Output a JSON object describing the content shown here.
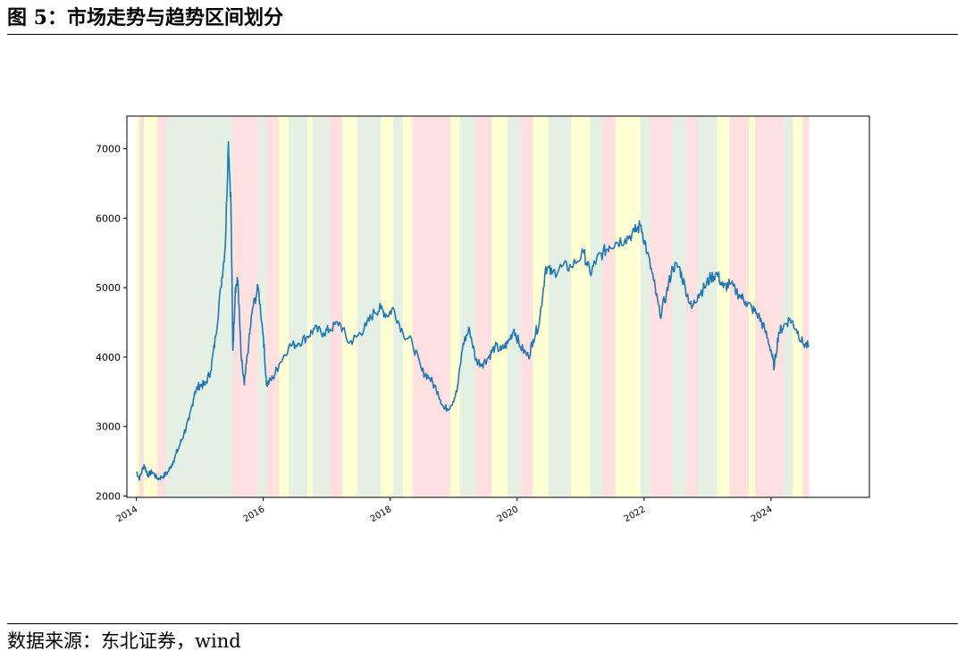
{
  "title": "图 5：市场走势与趋势区间划分",
  "source": "数据来源：东北证券，wind",
  "chart_data": {
    "type": "line",
    "title": "",
    "xlabel": "",
    "ylabel": "",
    "xlim": [
      2013.85,
      2025.55
    ],
    "ylim": [
      1980,
      7470
    ],
    "x_ticks": [
      2014,
      2016,
      2018,
      2020,
      2022,
      2024
    ],
    "y_ticks": [
      2000,
      3000,
      4000,
      5000,
      6000,
      7000
    ],
    "grid": false,
    "legend": "none",
    "regime_colors": {
      "up": "#e3f0e3",
      "range": "#ffffd4",
      "down": "#ffe0e0"
    },
    "regimes": [
      {
        "start": 2014.0,
        "end": 2014.05,
        "state": "range"
      },
      {
        "start": 2014.05,
        "end": 2014.12,
        "state": "down"
      },
      {
        "start": 2014.12,
        "end": 2014.33,
        "state": "range"
      },
      {
        "start": 2014.33,
        "end": 2014.48,
        "state": "down"
      },
      {
        "start": 2014.48,
        "end": 2015.52,
        "state": "up"
      },
      {
        "start": 2015.52,
        "end": 2015.92,
        "state": "down"
      },
      {
        "start": 2015.92,
        "end": 2016.05,
        "state": "up"
      },
      {
        "start": 2016.05,
        "end": 2016.25,
        "state": "down"
      },
      {
        "start": 2016.25,
        "end": 2016.4,
        "state": "range"
      },
      {
        "start": 2016.4,
        "end": 2016.7,
        "state": "up"
      },
      {
        "start": 2016.7,
        "end": 2016.78,
        "state": "range"
      },
      {
        "start": 2016.78,
        "end": 2017.05,
        "state": "up"
      },
      {
        "start": 2017.05,
        "end": 2017.25,
        "state": "down"
      },
      {
        "start": 2017.25,
        "end": 2017.48,
        "state": "range"
      },
      {
        "start": 2017.48,
        "end": 2017.85,
        "state": "up"
      },
      {
        "start": 2017.85,
        "end": 2018.05,
        "state": "range"
      },
      {
        "start": 2018.05,
        "end": 2018.2,
        "state": "up"
      },
      {
        "start": 2018.2,
        "end": 2018.35,
        "state": "range"
      },
      {
        "start": 2018.35,
        "end": 2018.95,
        "state": "down"
      },
      {
        "start": 2018.95,
        "end": 2019.1,
        "state": "range"
      },
      {
        "start": 2019.1,
        "end": 2019.35,
        "state": "up"
      },
      {
        "start": 2019.35,
        "end": 2019.6,
        "state": "down"
      },
      {
        "start": 2019.6,
        "end": 2019.85,
        "state": "range"
      },
      {
        "start": 2019.85,
        "end": 2020.05,
        "state": "up"
      },
      {
        "start": 2020.05,
        "end": 2020.25,
        "state": "down"
      },
      {
        "start": 2020.25,
        "end": 2020.5,
        "state": "range"
      },
      {
        "start": 2020.5,
        "end": 2020.85,
        "state": "up"
      },
      {
        "start": 2020.85,
        "end": 2021.15,
        "state": "range"
      },
      {
        "start": 2021.15,
        "end": 2021.35,
        "state": "up"
      },
      {
        "start": 2021.35,
        "end": 2021.55,
        "state": "down"
      },
      {
        "start": 2021.55,
        "end": 2021.95,
        "state": "range"
      },
      {
        "start": 2021.95,
        "end": 2022.1,
        "state": "up"
      },
      {
        "start": 2022.1,
        "end": 2022.45,
        "state": "down"
      },
      {
        "start": 2022.45,
        "end": 2022.65,
        "state": "up"
      },
      {
        "start": 2022.65,
        "end": 2022.85,
        "state": "down"
      },
      {
        "start": 2022.85,
        "end": 2023.15,
        "state": "up"
      },
      {
        "start": 2023.15,
        "end": 2023.35,
        "state": "range"
      },
      {
        "start": 2023.35,
        "end": 2023.65,
        "state": "down"
      },
      {
        "start": 2023.65,
        "end": 2023.75,
        "state": "range"
      },
      {
        "start": 2023.75,
        "end": 2024.2,
        "state": "down"
      },
      {
        "start": 2024.2,
        "end": 2024.35,
        "state": "up"
      },
      {
        "start": 2024.35,
        "end": 2024.5,
        "state": "range"
      },
      {
        "start": 2024.5,
        "end": 2024.6,
        "state": "down"
      }
    ],
    "series": [
      {
        "color": "#1f77b4",
        "points": [
          [
            2014.0,
            2350
          ],
          [
            2014.05,
            2250
          ],
          [
            2014.12,
            2450
          ],
          [
            2014.18,
            2300
          ],
          [
            2014.25,
            2350
          ],
          [
            2014.33,
            2250
          ],
          [
            2014.42,
            2280
          ],
          [
            2014.5,
            2350
          ],
          [
            2014.58,
            2500
          ],
          [
            2014.67,
            2700
          ],
          [
            2014.75,
            2900
          ],
          [
            2014.83,
            3100
          ],
          [
            2014.92,
            3500
          ],
          [
            2015.0,
            3600
          ],
          [
            2015.08,
            3600
          ],
          [
            2015.17,
            3800
          ],
          [
            2015.25,
            4300
          ],
          [
            2015.33,
            5000
          ],
          [
            2015.4,
            5600
          ],
          [
            2015.45,
            7100
          ],
          [
            2015.49,
            6200
          ],
          [
            2015.52,
            4100
          ],
          [
            2015.56,
            5000
          ],
          [
            2015.6,
            5100
          ],
          [
            2015.65,
            4000
          ],
          [
            2015.7,
            3600
          ],
          [
            2015.77,
            4200
          ],
          [
            2015.83,
            4700
          ],
          [
            2015.92,
            5000
          ],
          [
            2016.0,
            4300
          ],
          [
            2016.05,
            3600
          ],
          [
            2016.15,
            3700
          ],
          [
            2016.25,
            3900
          ],
          [
            2016.4,
            4150
          ],
          [
            2016.55,
            4200
          ],
          [
            2016.7,
            4300
          ],
          [
            2016.8,
            4400
          ],
          [
            2016.95,
            4350
          ],
          [
            2017.05,
            4400
          ],
          [
            2017.2,
            4500
          ],
          [
            2017.35,
            4200
          ],
          [
            2017.48,
            4300
          ],
          [
            2017.62,
            4450
          ],
          [
            2017.75,
            4650
          ],
          [
            2017.85,
            4700
          ],
          [
            2017.95,
            4600
          ],
          [
            2018.05,
            4700
          ],
          [
            2018.2,
            4350
          ],
          [
            2018.35,
            4200
          ],
          [
            2018.5,
            3800
          ],
          [
            2018.62,
            3700
          ],
          [
            2018.75,
            3500
          ],
          [
            2018.85,
            3250
          ],
          [
            2018.95,
            3300
          ],
          [
            2019.05,
            3500
          ],
          [
            2019.15,
            4200
          ],
          [
            2019.25,
            4400
          ],
          [
            2019.35,
            3950
          ],
          [
            2019.45,
            3900
          ],
          [
            2019.55,
            4000
          ],
          [
            2019.65,
            4150
          ],
          [
            2019.75,
            4100
          ],
          [
            2019.85,
            4200
          ],
          [
            2019.95,
            4400
          ],
          [
            2020.05,
            4150
          ],
          [
            2020.18,
            4000
          ],
          [
            2020.25,
            4250
          ],
          [
            2020.35,
            4500
          ],
          [
            2020.45,
            5300
          ],
          [
            2020.55,
            5200
          ],
          [
            2020.7,
            5300
          ],
          [
            2020.85,
            5300
          ],
          [
            2021.05,
            5500
          ],
          [
            2021.15,
            5200
          ],
          [
            2021.25,
            5400
          ],
          [
            2021.35,
            5500
          ],
          [
            2021.45,
            5600
          ],
          [
            2021.55,
            5650
          ],
          [
            2021.7,
            5700
          ],
          [
            2021.85,
            5800
          ],
          [
            2021.95,
            5900
          ],
          [
            2022.05,
            5500
          ],
          [
            2022.15,
            5100
          ],
          [
            2022.25,
            4600
          ],
          [
            2022.35,
            4900
          ],
          [
            2022.45,
            5300
          ],
          [
            2022.55,
            5300
          ],
          [
            2022.65,
            5000
          ],
          [
            2022.75,
            4700
          ],
          [
            2022.85,
            4900
          ],
          [
            2022.95,
            5000
          ],
          [
            2023.05,
            5150
          ],
          [
            2023.15,
            5200
          ],
          [
            2023.25,
            5000
          ],
          [
            2023.35,
            5050
          ],
          [
            2023.5,
            4900
          ],
          [
            2023.6,
            4800
          ],
          [
            2023.7,
            4700
          ],
          [
            2023.8,
            4600
          ],
          [
            2023.9,
            4400
          ],
          [
            2024.0,
            4100
          ],
          [
            2024.05,
            3850
          ],
          [
            2024.12,
            4350
          ],
          [
            2024.2,
            4450
          ],
          [
            2024.3,
            4550
          ],
          [
            2024.4,
            4400
          ],
          [
            2024.5,
            4200
          ],
          [
            2024.6,
            4150
          ]
        ]
      }
    ]
  }
}
